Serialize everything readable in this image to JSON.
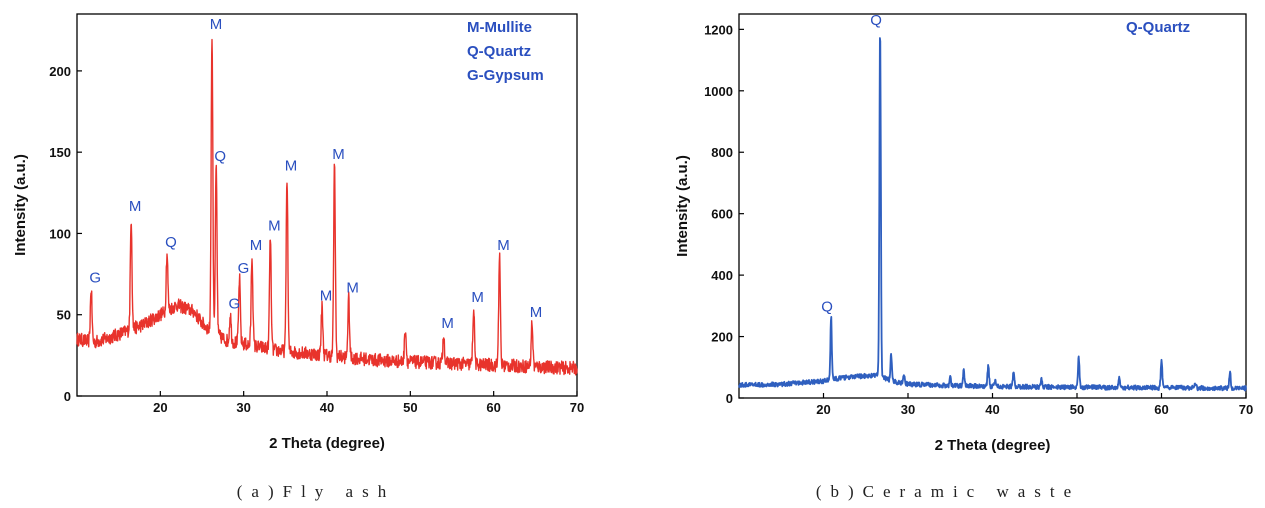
{
  "chart_data": [
    {
      "type": "line",
      "caption": "(a)Fly ash",
      "xlabel": "2 Theta (degree)",
      "ylabel": "Intensity (a.u.)",
      "xlim": [
        10,
        70
      ],
      "ylim": [
        0,
        235
      ],
      "xticks": [
        20,
        30,
        40,
        50,
        60,
        70
      ],
      "yticks": [
        0,
        50,
        100,
        150,
        200
      ],
      "color": "#e8332c",
      "legend": [
        "M-Mullite",
        "Q-Quartz",
        "G-Gypsum"
      ],
      "legend_position": "top-right",
      "baseline": [
        [
          10,
          35
        ],
        [
          12,
          33
        ],
        [
          14,
          36
        ],
        [
          16,
          40
        ],
        [
          18,
          44
        ],
        [
          20,
          50
        ],
        [
          22,
          56
        ],
        [
          24,
          52
        ],
        [
          25,
          45
        ],
        [
          26,
          40
        ],
        [
          28,
          34
        ],
        [
          30,
          32
        ],
        [
          34,
          28
        ],
        [
          38,
          26
        ],
        [
          42,
          24
        ],
        [
          46,
          22
        ],
        [
          50,
          21
        ],
        [
          55,
          20
        ],
        [
          60,
          19
        ],
        [
          65,
          18
        ],
        [
          70,
          17
        ]
      ],
      "peaks": [
        {
          "x": 11.7,
          "y": 66
        },
        {
          "x": 16.5,
          "y": 110
        },
        {
          "x": 20.8,
          "y": 88
        },
        {
          "x": 26.2,
          "y": 222
        },
        {
          "x": 26.7,
          "y": 141
        },
        {
          "x": 28.4,
          "y": 50
        },
        {
          "x": 29.5,
          "y": 72
        },
        {
          "x": 31.0,
          "y": 86
        },
        {
          "x": 33.2,
          "y": 98
        },
        {
          "x": 35.2,
          "y": 135
        },
        {
          "x": 39.4,
          "y": 55
        },
        {
          "x": 40.9,
          "y": 142
        },
        {
          "x": 42.6,
          "y": 60
        },
        {
          "x": 49.4,
          "y": 42
        },
        {
          "x": 54.0,
          "y": 38
        },
        {
          "x": 57.6,
          "y": 54
        },
        {
          "x": 60.7,
          "y": 86
        },
        {
          "x": 64.6,
          "y": 45
        }
      ],
      "peak_labels": [
        {
          "x": 11.7,
          "y": 66,
          "text": "G"
        },
        {
          "x": 16.5,
          "y": 110,
          "text": "M"
        },
        {
          "x": 20.8,
          "y": 88,
          "text": "Q"
        },
        {
          "x": 26.2,
          "y": 222,
          "text": "M"
        },
        {
          "x": 26.7,
          "y": 141,
          "text": "Q"
        },
        {
          "x": 28.4,
          "y": 50,
          "text": "G"
        },
        {
          "x": 29.5,
          "y": 72,
          "text": "G"
        },
        {
          "x": 31.0,
          "y": 86,
          "text": "M"
        },
        {
          "x": 33.2,
          "y": 98,
          "text": "M"
        },
        {
          "x": 35.2,
          "y": 135,
          "text": "M"
        },
        {
          "x": 39.4,
          "y": 55,
          "text": "M"
        },
        {
          "x": 40.9,
          "y": 142,
          "text": "M"
        },
        {
          "x": 42.6,
          "y": 60,
          "text": "M"
        },
        {
          "x": 54.0,
          "y": 38,
          "text": "M"
        },
        {
          "x": 57.6,
          "y": 54,
          "text": "M"
        },
        {
          "x": 60.7,
          "y": 86,
          "text": "M"
        },
        {
          "x": 64.6,
          "y": 45,
          "text": "M"
        }
      ]
    },
    {
      "type": "line",
      "caption": "(b)Ceramic waste",
      "xlabel": "2 Theta (degree)",
      "ylabel": "Intensity (a.u.)",
      "xlim": [
        10,
        70
      ],
      "ylim": [
        0,
        1250
      ],
      "xticks": [
        20,
        30,
        40,
        50,
        60,
        70
      ],
      "yticks": [
        0,
        200,
        400,
        600,
        800,
        1000,
        1200
      ],
      "color": "#2f5fbf",
      "legend": [
        "Q-Quartz"
      ],
      "legend_position": "top-right",
      "baseline": [
        [
          10,
          42
        ],
        [
          15,
          45
        ],
        [
          20,
          55
        ],
        [
          22,
          65
        ],
        [
          25,
          72
        ],
        [
          26.5,
          74
        ],
        [
          28,
          55
        ],
        [
          30,
          45
        ],
        [
          35,
          40
        ],
        [
          40,
          38
        ],
        [
          50,
          35
        ],
        [
          60,
          33
        ],
        [
          70,
          32
        ]
      ],
      "peaks": [
        {
          "x": 20.9,
          "y": 262
        },
        {
          "x": 26.7,
          "y": 1195
        },
        {
          "x": 28.0,
          "y": 140
        },
        {
          "x": 29.5,
          "y": 80
        },
        {
          "x": 35.0,
          "y": 65
        },
        {
          "x": 36.6,
          "y": 90
        },
        {
          "x": 39.5,
          "y": 110
        },
        {
          "x": 40.3,
          "y": 60
        },
        {
          "x": 42.5,
          "y": 85
        },
        {
          "x": 45.8,
          "y": 65
        },
        {
          "x": 50.2,
          "y": 135
        },
        {
          "x": 55.0,
          "y": 65
        },
        {
          "x": 60.0,
          "y": 125
        },
        {
          "x": 64.0,
          "y": 45
        },
        {
          "x": 68.1,
          "y": 85
        }
      ],
      "peak_labels": [
        {
          "x": 20.9,
          "y": 262,
          "text": "Q"
        },
        {
          "x": 26.7,
          "y": 1195,
          "text": "Q"
        }
      ]
    }
  ]
}
